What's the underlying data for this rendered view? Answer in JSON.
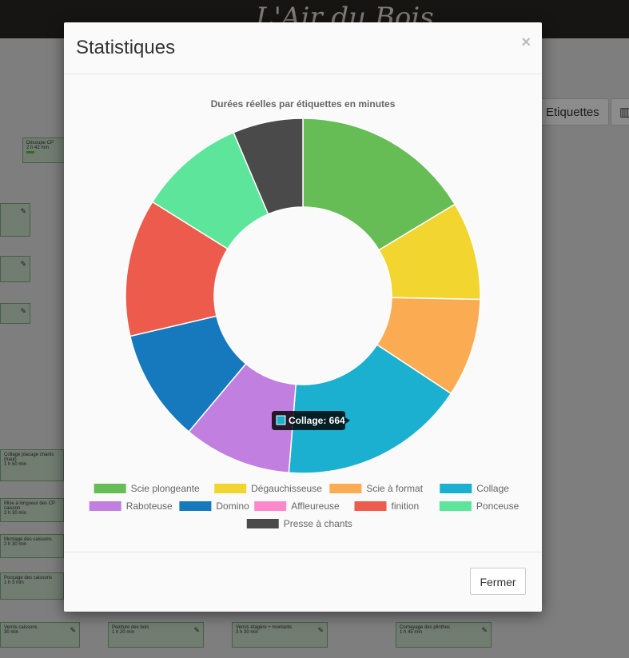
{
  "app": {
    "brand": "L'Air du Bois"
  },
  "background": {
    "etiquettes_label": "Etiquettes",
    "nodes": [
      {
        "label": "Découpe CP",
        "time": "2 h 42 min"
      },
      {
        "label": "Collage placage chants (haut)",
        "time": "1 h 50 min"
      },
      {
        "label": "Mise à longueur des CP caisson",
        "time": "2 h 30 min"
      },
      {
        "label": "Montage des caissons",
        "time": "2 h 30 min"
      },
      {
        "label": "Ponçage des caissons",
        "time": "1 h 3 min"
      },
      {
        "label": "Vernis caissons",
        "time": "30 min"
      },
      {
        "label": "Peinture des bois",
        "time": "1 h 20 min"
      },
      {
        "label": "Vernis étagère + montants",
        "time": "3 h 30 min"
      },
      {
        "label": "Cornayage des plinthes",
        "time": "1 h 45 min"
      }
    ]
  },
  "modal": {
    "title": "Statistiques",
    "close_symbol": "×",
    "footer": {
      "close_label": "Fermer"
    }
  },
  "chart_data": {
    "type": "pie",
    "donut": true,
    "title": "Durées réelles par étiquettes en minutes",
    "legend_position": "bottom",
    "series": [
      {
        "name": "Scie plongeante",
        "value": 640,
        "color": "#66bd55"
      },
      {
        "name": "Dégauchisseuse",
        "value": 350,
        "color": "#f2d52f"
      },
      {
        "name": "Scie à format",
        "value": 350,
        "color": "#fbac52"
      },
      {
        "name": "Collage",
        "value": 664,
        "color": "#1bb0cf"
      },
      {
        "name": "Raboteuse",
        "value": 385,
        "color": "#c17fe0"
      },
      {
        "name": "Domino",
        "value": 400,
        "color": "#1679bd"
      },
      {
        "name": "Affleureuse",
        "value": 0,
        "color": "#ff88cc"
      },
      {
        "name": "finition",
        "value": 490,
        "color": "#ec5b4b"
      },
      {
        "name": "Ponceuse",
        "value": 380,
        "color": "#5ce59b"
      },
      {
        "name": "Presse à chants",
        "value": 250,
        "color": "#4a4a4a"
      }
    ],
    "tooltip": {
      "label": "Collage",
      "value": 664
    }
  }
}
